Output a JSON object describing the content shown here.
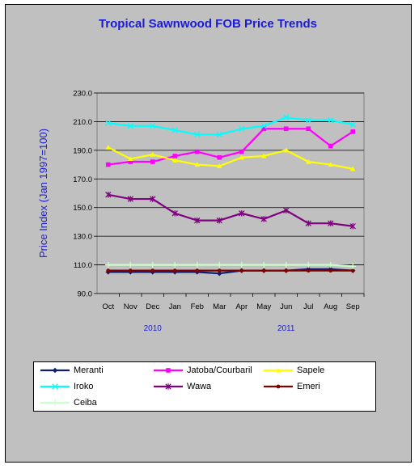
{
  "chart_data": {
    "type": "line",
    "title": "Tropical Sawnwood FOB Price Trends",
    "ylabel": "Price Index  (Jan 1997=100)",
    "xlabel": "",
    "ylim": [
      90,
      230
    ],
    "ytick_labels": [
      "230.0",
      "210.0",
      "190.0",
      "170.0",
      "150.0",
      "130.0",
      "110.0",
      "90.0"
    ],
    "ytick_values": [
      230,
      210,
      190,
      170,
      150,
      130,
      110,
      90
    ],
    "categories": [
      "Oct",
      "Nov",
      "Dec",
      "Jan",
      "Feb",
      "Mar",
      "Apr",
      "May",
      "Jun",
      "Jul",
      "Aug",
      "Sep"
    ],
    "year_labels": [
      {
        "label": "2010",
        "after_index": 2
      },
      {
        "label": "2011",
        "after_index": 8
      }
    ],
    "grid": true,
    "legend_position": "bottom",
    "series": [
      {
        "name": "Meranti",
        "color": "#0c1c6e",
        "marker": "diamond",
        "values": [
          105,
          105,
          105,
          105,
          105,
          104,
          106,
          106,
          106,
          107,
          107,
          106
        ]
      },
      {
        "name": "Jatoba/Courbaril",
        "color": "#ff00ff",
        "marker": "square",
        "values": [
          180,
          182,
          182,
          186,
          189,
          185,
          189,
          205,
          205,
          205,
          193,
          203
        ]
      },
      {
        "name": "Sapele",
        "color": "#ffff00",
        "marker": "triangle",
        "values": [
          192,
          184,
          187,
          183,
          180,
          179,
          185,
          186,
          190,
          182,
          180,
          177
        ]
      },
      {
        "name": "Iroko",
        "color": "#00ffff",
        "marker": "x",
        "values": [
          209,
          207,
          207,
          204,
          201,
          201,
          205,
          207,
          213,
          211,
          211,
          208
        ]
      },
      {
        "name": "Wawa",
        "color": "#800080",
        "marker": "star",
        "values": [
          159,
          156,
          156,
          146,
          141,
          141,
          146,
          142,
          148,
          139,
          139,
          137
        ]
      },
      {
        "name": "Emeri",
        "color": "#800000",
        "marker": "dot",
        "values": [
          106,
          106,
          106,
          106,
          106,
          106,
          106,
          106,
          106,
          106,
          106,
          106
        ]
      },
      {
        "name": "Ceiba",
        "color": "#ccffcc",
        "marker": "plus",
        "values": [
          110,
          110,
          110,
          110,
          110,
          110,
          110,
          110,
          110,
          110,
          110,
          109
        ]
      }
    ]
  }
}
